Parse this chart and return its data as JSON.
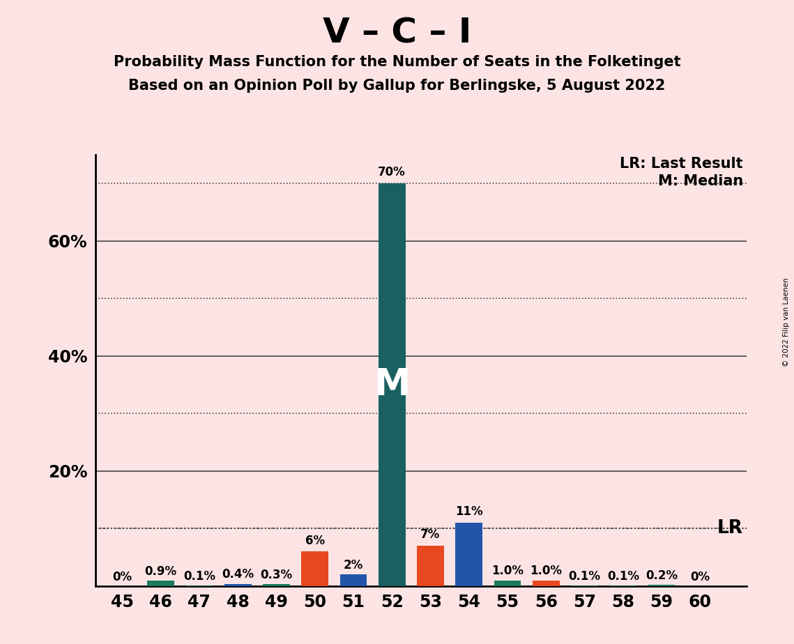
{
  "title_main": "V – C – I",
  "subtitle1": "Probability Mass Function for the Number of Seats in the Folketinget",
  "subtitle2": "Based on an Opinion Poll by Gallup for Berlingske, 5 August 2022",
  "copyright": "© 2022 Filip van Laenen",
  "seats": [
    45,
    46,
    47,
    48,
    49,
    50,
    51,
    52,
    53,
    54,
    55,
    56,
    57,
    58,
    59,
    60
  ],
  "values": [
    0.0,
    0.9,
    0.1,
    0.4,
    0.3,
    6.0,
    2.0,
    70.0,
    7.0,
    11.0,
    1.0,
    1.0,
    0.1,
    0.1,
    0.2,
    0.0
  ],
  "labels": [
    "0%",
    "0.9%",
    "0.1%",
    "0.4%",
    "0.3%",
    "6%",
    "2%",
    "70%",
    "7%",
    "11%",
    "1.0%",
    "1.0%",
    "0.1%",
    "0.1%",
    "0.2%",
    "0%"
  ],
  "bar_colors": [
    "#1a7a5e",
    "#1a7a5e",
    "#1a7a5e",
    "#2255aa",
    "#1a7a5e",
    "#e84820",
    "#2255aa",
    "#1a6060",
    "#e84820",
    "#2255aa",
    "#1a7a5e",
    "#e84820",
    "#1a7a5e",
    "#1a7a5e",
    "#1a7a5e",
    "#1a7a5e"
  ],
  "median_seat": 52,
  "median_label": "M",
  "lr_value": 10.0,
  "lr_label": "LR",
  "lr_legend": "LR: Last Result",
  "m_legend": "M: Median",
  "background_color": "#fce4e4",
  "ylim": [
    0,
    75
  ],
  "solid_grid": [
    20,
    40,
    60
  ],
  "dotted_grid": [
    10,
    30,
    50,
    70
  ],
  "ytick_positions": [
    20,
    40,
    60
  ],
  "ytick_labels": [
    "20%",
    "40%",
    "60%"
  ],
  "grid_color": "#444444",
  "bar_width": 0.7,
  "xlim_left": 44.3,
  "xlim_right": 61.2
}
